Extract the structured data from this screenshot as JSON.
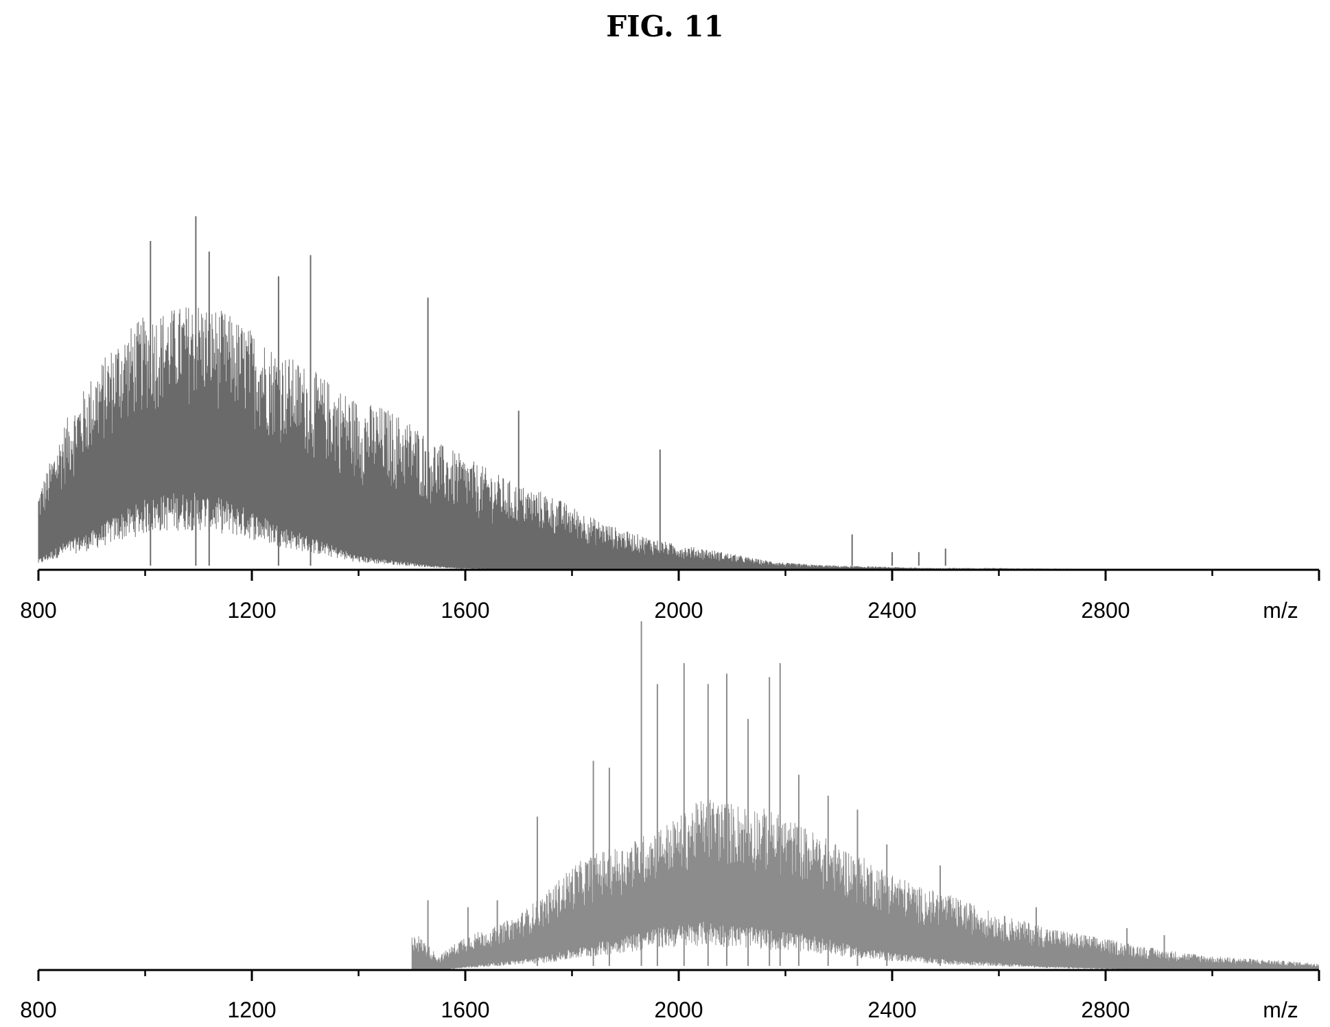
{
  "figure": {
    "title": "FIG. 11"
  },
  "chart_data": [
    {
      "type": "line",
      "title": "",
      "xlabel": "m/z",
      "ylabel": "",
      "xlim": [
        800,
        3200
      ],
      "ylim": [
        0,
        1
      ],
      "x_ticks": [
        800,
        1200,
        1600,
        2000,
        2400,
        2800
      ],
      "axis_label": "m/z",
      "color": "#6a6a6a",
      "envelope": {
        "x": [
          800,
          850,
          900,
          950,
          1000,
          1050,
          1100,
          1150,
          1200,
          1250,
          1300,
          1350,
          1400,
          1450,
          1500,
          1550,
          1600,
          1650,
          1700,
          1750,
          1800,
          1850,
          1900,
          1950,
          2000,
          2050,
          2100,
          2150,
          2200,
          2250,
          2300,
          2350,
          2400,
          2450,
          2500,
          2600,
          2900
        ],
        "upper": [
          0.22,
          0.42,
          0.55,
          0.66,
          0.72,
          0.74,
          0.76,
          0.73,
          0.68,
          0.62,
          0.58,
          0.53,
          0.48,
          0.46,
          0.42,
          0.36,
          0.32,
          0.28,
          0.24,
          0.22,
          0.18,
          0.14,
          0.11,
          0.09,
          0.07,
          0.06,
          0.045,
          0.03,
          0.02,
          0.015,
          0.012,
          0.01,
          0.008,
          0.006,
          0.004,
          0.003,
          0.0
        ],
        "lower": [
          0.03,
          0.08,
          0.11,
          0.16,
          0.2,
          0.22,
          0.22,
          0.2,
          0.17,
          0.13,
          0.1,
          0.07,
          0.04,
          0.03,
          0.02,
          0.01,
          0.005,
          0.003,
          0.002,
          0.001,
          0,
          0,
          0,
          0,
          0,
          0,
          0,
          0,
          0,
          0,
          0,
          0,
          0,
          0,
          0,
          0,
          0
        ]
      },
      "prominent_peaks": [
        {
          "x": 1095,
          "y": 1.0
        },
        {
          "x": 1010,
          "y": 0.93
        },
        {
          "x": 1120,
          "y": 0.9
        },
        {
          "x": 1310,
          "y": 0.89
        },
        {
          "x": 1250,
          "y": 0.83
        },
        {
          "x": 1530,
          "y": 0.77
        },
        {
          "x": 1700,
          "y": 0.45
        },
        {
          "x": 1965,
          "y": 0.34
        },
        {
          "x": 2325,
          "y": 0.1
        },
        {
          "x": 2400,
          "y": 0.05
        },
        {
          "x": 2450,
          "y": 0.05
        },
        {
          "x": 2500,
          "y": 0.06
        }
      ]
    },
    {
      "type": "line",
      "title": "",
      "xlabel": "m/z",
      "ylabel": "",
      "xlim": [
        800,
        3200
      ],
      "ylim": [
        0,
        1
      ],
      "x_ticks": [
        800,
        1200,
        1600,
        2000,
        2400,
        2800
      ],
      "axis_label": "m/z",
      "color": "#8c8c8c",
      "envelope": {
        "x": [
          1500,
          1550,
          1600,
          1650,
          1700,
          1750,
          1800,
          1850,
          1900,
          1950,
          2000,
          2050,
          2100,
          2150,
          2200,
          2250,
          2300,
          2350,
          2400,
          2450,
          2500,
          2600,
          2700,
          2800,
          2900,
          3000,
          3100,
          3200
        ],
        "upper": [
          0.12,
          0.04,
          0.1,
          0.12,
          0.16,
          0.22,
          0.3,
          0.34,
          0.36,
          0.4,
          0.44,
          0.5,
          0.48,
          0.47,
          0.44,
          0.4,
          0.36,
          0.32,
          0.28,
          0.24,
          0.22,
          0.16,
          0.12,
          0.09,
          0.06,
          0.04,
          0.03,
          0.02
        ],
        "lower": [
          0.0,
          0.0,
          0.01,
          0.02,
          0.03,
          0.04,
          0.06,
          0.08,
          0.1,
          0.12,
          0.13,
          0.14,
          0.13,
          0.12,
          0.11,
          0.1,
          0.08,
          0.06,
          0.05,
          0.04,
          0.03,
          0.02,
          0.01,
          0.005,
          0.0,
          0.0,
          0.0,
          0.0
        ]
      },
      "prominent_peaks": [
        {
          "x": 1930,
          "y": 1.0
        },
        {
          "x": 2010,
          "y": 0.88
        },
        {
          "x": 2190,
          "y": 0.88
        },
        {
          "x": 2090,
          "y": 0.85
        },
        {
          "x": 2170,
          "y": 0.84
        },
        {
          "x": 2055,
          "y": 0.82
        },
        {
          "x": 1960,
          "y": 0.82
        },
        {
          "x": 2130,
          "y": 0.72
        },
        {
          "x": 1840,
          "y": 0.6
        },
        {
          "x": 1870,
          "y": 0.58
        },
        {
          "x": 2225,
          "y": 0.56
        },
        {
          "x": 2280,
          "y": 0.5
        },
        {
          "x": 2335,
          "y": 0.46
        },
        {
          "x": 2390,
          "y": 0.36
        },
        {
          "x": 1735,
          "y": 0.44
        },
        {
          "x": 1530,
          "y": 0.2
        },
        {
          "x": 1605,
          "y": 0.18
        },
        {
          "x": 1660,
          "y": 0.2
        },
        {
          "x": 2490,
          "y": 0.3
        },
        {
          "x": 2670,
          "y": 0.18
        },
        {
          "x": 2840,
          "y": 0.12
        },
        {
          "x": 2910,
          "y": 0.1
        }
      ]
    }
  ]
}
